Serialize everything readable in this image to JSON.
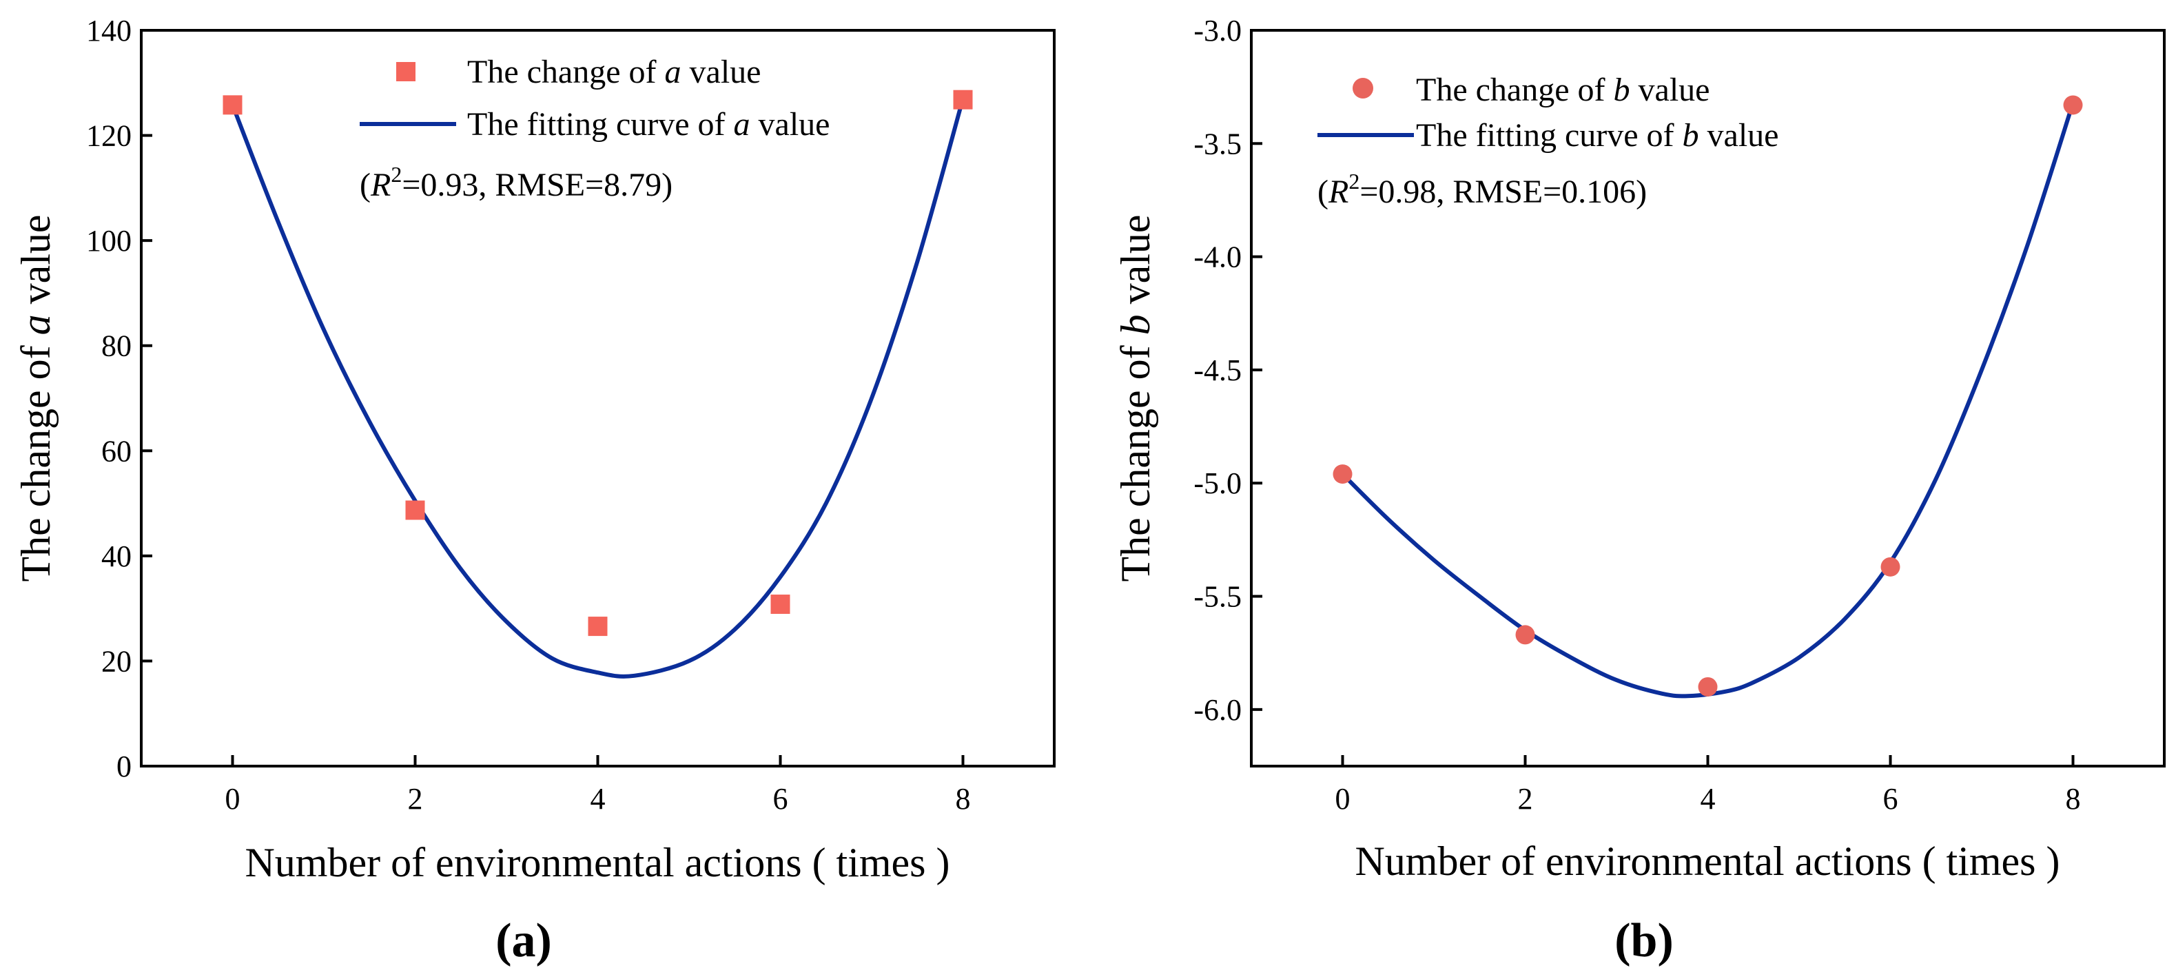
{
  "colors": {
    "marker_a": "#f4645a",
    "marker_b": "#e8645c",
    "curve": "#0b2e9a",
    "axis": "#000000"
  },
  "chart_data": [
    {
      "type": "scatter",
      "panel_label_open": "(",
      "panel_label_letter": "a",
      "panel_label_close": ")",
      "xlabel": "Number of environmental actions ( times )",
      "ylabel_prefix": "The change of ",
      "ylabel_var": "a",
      "ylabel_suffix": " value",
      "xlim": [
        -1,
        9
      ],
      "ylim": [
        0,
        140
      ],
      "xticks": [
        0,
        2,
        4,
        6,
        8
      ],
      "xtick_labels": [
        "0",
        "2",
        "4",
        "6",
        "8"
      ],
      "yticks": [
        0,
        20,
        40,
        60,
        80,
        100,
        120,
        140
      ],
      "ytick_labels": [
        "0",
        "20",
        "40",
        "60",
        "80",
        "100",
        "120",
        "140"
      ],
      "marker": "square",
      "points": {
        "x": [
          0,
          2,
          4,
          6,
          8
        ],
        "y": [
          125.8,
          48.7,
          26.6,
          30.8,
          126.8
        ]
      },
      "fit_curve": {
        "x": [
          0,
          0.5,
          1,
          1.5,
          2,
          2.5,
          3,
          3.5,
          4,
          4.4,
          5,
          5.5,
          6,
          6.5,
          7,
          7.5,
          8
        ],
        "y": [
          125.8,
          103.5,
          83.0,
          65.5,
          50.5,
          37.5,
          27.5,
          20.5,
          17.8,
          17.2,
          20.0,
          26.0,
          36.0,
          50.0,
          70.0,
          96.0,
          127.0
        ]
      },
      "legend": {
        "points_prefix": "The change of ",
        "points_var": "a",
        "points_suffix": " value",
        "curve_prefix": "The fitting curve of ",
        "curve_var": "a",
        "curve_suffix": " value",
        "stats_open": "(",
        "stats_r": "R",
        "stats_exp": "2",
        "stats_rest": "=0.93, RMSE=8.79)"
      }
    },
    {
      "type": "scatter",
      "panel_label_open": "(",
      "panel_label_letter": "b",
      "panel_label_close": ")",
      "xlabel": "Number of environmental actions ( times )",
      "ylabel_prefix": "The change of ",
      "ylabel_var": "b",
      "ylabel_suffix": " value",
      "xlim": [
        -1,
        9
      ],
      "ylim": [
        -6.25,
        -3.0
      ],
      "xticks": [
        0,
        2,
        4,
        6,
        8
      ],
      "xtick_labels": [
        "0",
        "2",
        "4",
        "6",
        "8"
      ],
      "yticks": [
        -6.0,
        -5.5,
        -5.0,
        -4.5,
        -4.0,
        -3.5,
        -3.0
      ],
      "ytick_labels": [
        "-6.0",
        "-5.5",
        "-5.0",
        "-4.5",
        "-4.0",
        "-3.5",
        "-3.0"
      ],
      "marker": "circle",
      "points": {
        "x": [
          0,
          2,
          4,
          6,
          8
        ],
        "y": [
          -4.96,
          -5.67,
          -5.9,
          -5.37,
          -3.33
        ]
      },
      "fit_curve": {
        "x": [
          0,
          0.5,
          1,
          1.5,
          2,
          2.5,
          3,
          3.5,
          3.8,
          4.2,
          4.5,
          5,
          5.5,
          6,
          6.5,
          7,
          7.5,
          8
        ],
        "y": [
          -4.96,
          -5.16,
          -5.34,
          -5.5,
          -5.65,
          -5.77,
          -5.87,
          -5.93,
          -5.94,
          -5.92,
          -5.88,
          -5.77,
          -5.6,
          -5.35,
          -4.98,
          -4.5,
          -3.95,
          -3.32
        ]
      },
      "legend": {
        "points_prefix": "The change of ",
        "points_var": "b",
        "points_suffix": " value",
        "curve_prefix": "The fitting curve of ",
        "curve_var": "b",
        "curve_suffix": " value",
        "stats_open": "(",
        "stats_r": "R",
        "stats_exp": "2",
        "stats_rest": "=0.98, RMSE=0.106)"
      }
    }
  ]
}
